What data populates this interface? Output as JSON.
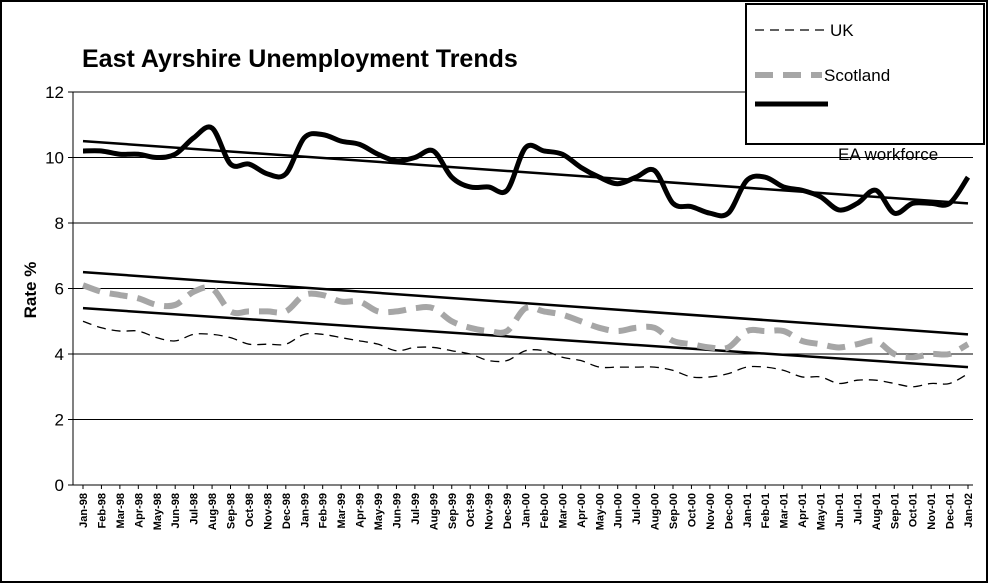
{
  "chart_data": {
    "type": "line",
    "title": "East Ayrshire Unemployment Trends",
    "xlabel": "",
    "ylabel": "Rate %",
    "ylim": [
      0,
      12
    ],
    "yticks": [
      0,
      2,
      4,
      6,
      8,
      10,
      12
    ],
    "grid": "horizontal",
    "legend_position": "top-right",
    "categories": [
      "Jan-98",
      "Feb-98",
      "Mar-98",
      "Apr-98",
      "May-98",
      "Jun-98",
      "Jul-98",
      "Aug-98",
      "Sep-98",
      "Oct-98",
      "Nov-98",
      "Dec-98",
      "Jan-99",
      "Feb-99",
      "Mar-99",
      "Apr-99",
      "May-99",
      "Jun-99",
      "Jul-99",
      "Aug-99",
      "Sep-99",
      "Oct-99",
      "Nov-99",
      "Dec-99",
      "Jan-00",
      "Feb-00",
      "Mar-00",
      "Apr-00",
      "May-00",
      "Jun-00",
      "Jul-00",
      "Aug-00",
      "Sep-00",
      "Oct-00",
      "Nov-00",
      "Dec-00",
      "Jan-01",
      "Feb-01",
      "Mar-01",
      "Apr-01",
      "May-01",
      "Jun-01",
      "Jul-01",
      "Aug-01",
      "Sep-01",
      "Oct-01",
      "Nov-01",
      "Dec-01",
      "Jan-02"
    ],
    "series": [
      {
        "name": "UK",
        "style": "dashed-thin",
        "color": "#000000",
        "values": [
          5.0,
          4.8,
          4.7,
          4.7,
          4.5,
          4.4,
          4.6,
          4.6,
          4.5,
          4.3,
          4.3,
          4.3,
          4.6,
          4.6,
          4.5,
          4.4,
          4.3,
          4.1,
          4.2,
          4.2,
          4.1,
          4.0,
          3.8,
          3.8,
          4.1,
          4.1,
          3.9,
          3.8,
          3.6,
          3.6,
          3.6,
          3.6,
          3.5,
          3.3,
          3.3,
          3.4,
          3.6,
          3.6,
          3.5,
          3.3,
          3.3,
          3.1,
          3.2,
          3.2,
          3.1,
          3.0,
          3.1,
          3.1,
          3.4
        ]
      },
      {
        "name": "Scotland",
        "style": "dashed-thick",
        "color": "#a6a6a6",
        "values": [
          6.1,
          5.9,
          5.8,
          5.7,
          5.5,
          5.5,
          5.9,
          6.0,
          5.3,
          5.3,
          5.3,
          5.3,
          5.8,
          5.8,
          5.6,
          5.6,
          5.3,
          5.3,
          5.4,
          5.4,
          5.0,
          4.8,
          4.7,
          4.7,
          5.4,
          5.3,
          5.2,
          5.0,
          4.8,
          4.7,
          4.8,
          4.8,
          4.4,
          4.3,
          4.2,
          4.2,
          4.7,
          4.7,
          4.7,
          4.4,
          4.3,
          4.2,
          4.3,
          4.4,
          4.0,
          3.9,
          4.0,
          4.0,
          4.3
        ]
      },
      {
        "name": "EA workforce",
        "style": "solid-thick",
        "color": "#000000",
        "values": [
          10.2,
          10.2,
          10.1,
          10.1,
          10.0,
          10.1,
          10.6,
          10.9,
          9.8,
          9.8,
          9.5,
          9.5,
          10.6,
          10.7,
          10.5,
          10.4,
          10.1,
          9.9,
          10.0,
          10.2,
          9.4,
          9.1,
          9.1,
          9.0,
          10.3,
          10.2,
          10.1,
          9.7,
          9.4,
          9.2,
          9.4,
          9.6,
          8.6,
          8.5,
          8.3,
          8.3,
          9.3,
          9.4,
          9.1,
          9.0,
          8.8,
          8.4,
          8.6,
          9.0,
          8.3,
          8.6,
          8.6,
          8.6,
          9.4
        ]
      }
    ],
    "trendlines": [
      {
        "of": "EA workforce",
        "start": 10.5,
        "end": 8.6
      },
      {
        "of": "Scotland",
        "start": 6.5,
        "end": 4.6
      },
      {
        "of": "UK",
        "start": 5.4,
        "end": 3.6
      }
    ]
  }
}
